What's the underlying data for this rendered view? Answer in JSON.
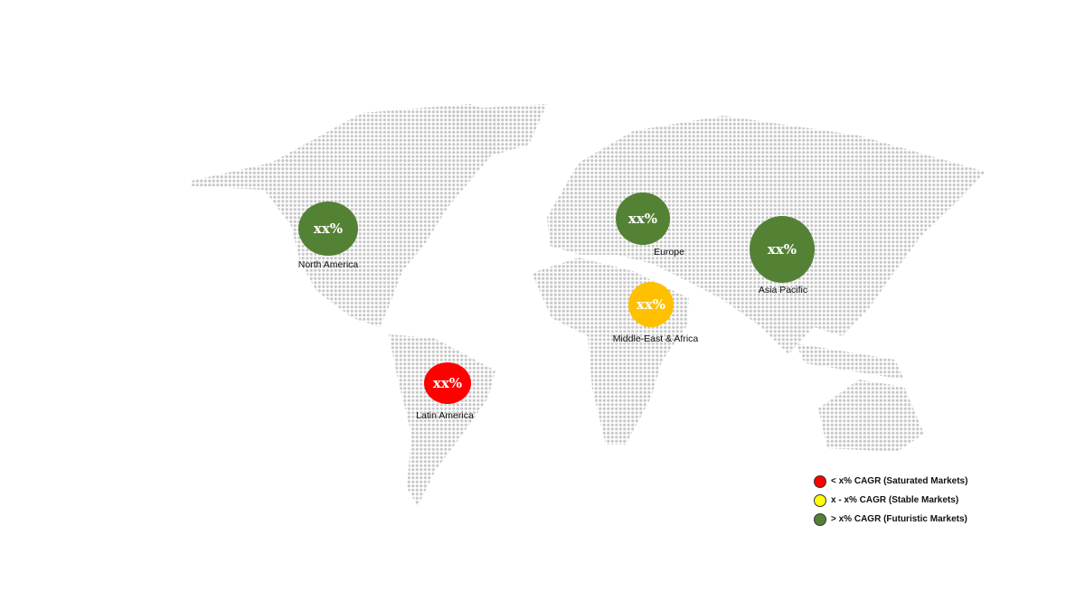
{
  "regions": [
    {
      "name": "North America",
      "value": "xx%",
      "color": "#548235"
    },
    {
      "name": "Europe",
      "value": "xx%",
      "color": "#548235"
    },
    {
      "name": "Asia Pacific",
      "value": "xx%",
      "color": "#548235"
    },
    {
      "name": "Middle-East & Africa",
      "value": "xx%",
      "color": "#FFC000"
    },
    {
      "name": "Latin America",
      "value": "xx%",
      "color": "#FF0000"
    }
  ],
  "legend": [
    {
      "label": "< x% CAGR (Saturated Markets)",
      "color": "#FF0000"
    },
    {
      "label": "x - x% CAGR (Stable Markets)",
      "color": "#FFFF00"
    },
    {
      "label": "> x% CAGR (Futuristic Markets)",
      "color": "#548235"
    }
  ],
  "map_color": "#c8c8c8"
}
